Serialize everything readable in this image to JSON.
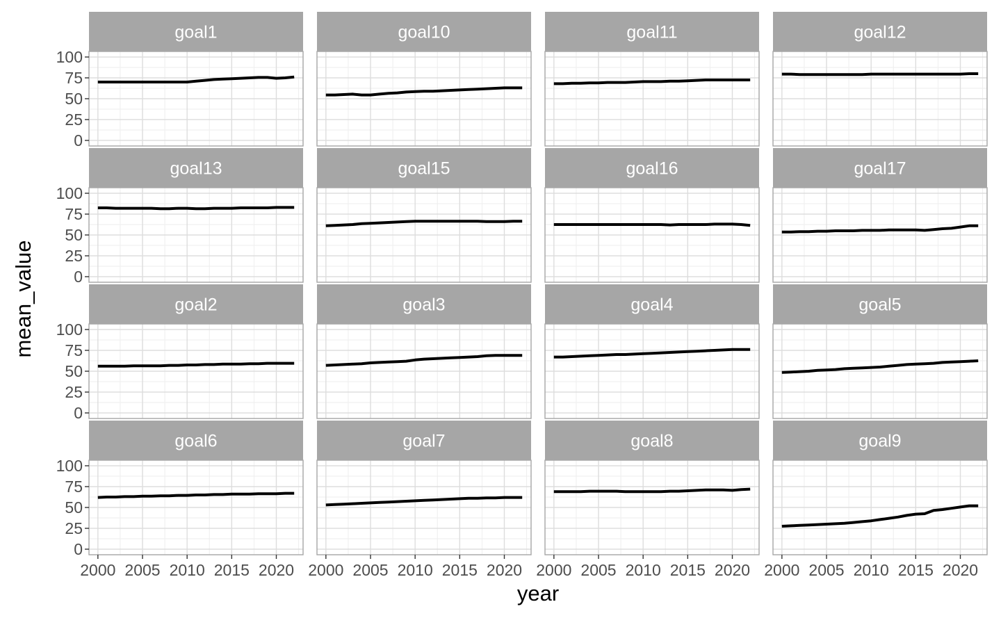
{
  "colors": {
    "strip_background": "#a6a6a6",
    "strip_text": "#ffffff",
    "panel_border": "#a6a6a6",
    "grid_major": "#dddddd",
    "grid_minor": "#eeeeee",
    "line": "#000000",
    "tick_label": "#4d4d4d",
    "axis_title": "#000000"
  },
  "chart_data": {
    "type": "line",
    "layout": "facet_wrap 4x4",
    "xlabel": "year",
    "ylabel": "mean_value",
    "x": [
      2000,
      2001,
      2002,
      2003,
      2004,
      2005,
      2006,
      2007,
      2008,
      2009,
      2010,
      2011,
      2012,
      2013,
      2014,
      2015,
      2016,
      2017,
      2018,
      2019,
      2020,
      2021,
      2022
    ],
    "xlim": [
      1999,
      2023
    ],
    "ylim": [
      0,
      100
    ],
    "x_ticks": [
      2000,
      2005,
      2010,
      2015,
      2020
    ],
    "x_tick_labels": [
      "2000",
      "2005",
      "2010",
      "2015",
      "2020"
    ],
    "y_ticks": [
      0,
      25,
      50,
      75,
      100
    ],
    "y_tick_labels": [
      "0",
      "25",
      "50",
      "75",
      "100"
    ],
    "grid": true,
    "legend": "none",
    "facets": [
      {
        "name": "goal1",
        "values": [
          70,
          70,
          70,
          70,
          70,
          70,
          70,
          70,
          70,
          70,
          70,
          71,
          72,
          73,
          73.5,
          74,
          74.5,
          75,
          75.5,
          75.5,
          74.5,
          75,
          76
        ]
      },
      {
        "name": "goal10",
        "values": [
          54.5,
          54.5,
          55,
          55.5,
          54.5,
          54.5,
          55.5,
          56.5,
          57,
          58,
          58.5,
          59,
          59,
          59.5,
          60,
          60.5,
          61,
          61.5,
          62,
          62.5,
          63,
          63,
          63
        ]
      },
      {
        "name": "goal11",
        "values": [
          68,
          68,
          68.5,
          68.5,
          69,
          69,
          69.5,
          69.5,
          69.5,
          70,
          70.5,
          70.5,
          70.5,
          71,
          71,
          71.5,
          72,
          72.5,
          72.5,
          72.5,
          72.5,
          72.5,
          72.5
        ]
      },
      {
        "name": "goal12",
        "values": [
          79.5,
          79.5,
          79,
          79,
          79,
          79,
          79,
          79,
          79,
          79,
          79.5,
          79.5,
          79.5,
          79.5,
          79.5,
          79.5,
          79.5,
          79.5,
          79.5,
          79.5,
          79.5,
          80,
          80
        ]
      },
      {
        "name": "goal13",
        "values": [
          82.5,
          82.5,
          82,
          82,
          82,
          82,
          82,
          81.5,
          81.5,
          82,
          82,
          81.5,
          81.5,
          82,
          82,
          82,
          82.5,
          82.5,
          82.5,
          82.5,
          83,
          83,
          83
        ]
      },
      {
        "name": "goal15",
        "values": [
          61,
          61.5,
          62,
          62.5,
          63.5,
          64,
          64.5,
          65,
          65.5,
          66,
          66.5,
          66.5,
          66.5,
          66.5,
          66.5,
          66.5,
          66.5,
          66.5,
          66,
          66,
          66,
          66.5,
          66.5
        ]
      },
      {
        "name": "goal16",
        "values": [
          62.5,
          62.5,
          62.5,
          62.5,
          62.5,
          62.5,
          62.5,
          62.5,
          62.5,
          62.5,
          62.5,
          62.5,
          62.5,
          62,
          62.5,
          62.5,
          62.5,
          62.5,
          63,
          63,
          63,
          62.5,
          61.5
        ]
      },
      {
        "name": "goal17",
        "values": [
          53.5,
          53.5,
          54,
          54,
          54.5,
          54.5,
          55,
          55,
          55,
          55.5,
          55.5,
          55.5,
          56,
          56,
          56,
          56,
          55.5,
          56.5,
          57.5,
          58,
          59.5,
          61,
          61
        ]
      },
      {
        "name": "goal2",
        "values": [
          56,
          56,
          56,
          56,
          56.5,
          56.5,
          56.5,
          56.5,
          57,
          57,
          57.5,
          57.5,
          58,
          58,
          58.5,
          58.5,
          58.5,
          59,
          59,
          59.5,
          59.5,
          59.5,
          59.5
        ]
      },
      {
        "name": "goal3",
        "values": [
          57,
          57.5,
          58,
          58.5,
          59,
          60,
          60.5,
          61,
          61.5,
          62,
          63.5,
          64.5,
          65,
          65.5,
          66,
          66.5,
          67,
          67.5,
          68.5,
          69,
          69,
          69,
          69
        ]
      },
      {
        "name": "goal4",
        "values": [
          67,
          67,
          67.5,
          68,
          68.5,
          69,
          69.5,
          70,
          70,
          70.5,
          71,
          71.5,
          72,
          72.5,
          73,
          73.5,
          74,
          74.5,
          75,
          75.5,
          76,
          76,
          76
        ]
      },
      {
        "name": "goal5",
        "values": [
          48.5,
          49,
          49.5,
          50,
          51,
          51.5,
          52,
          53,
          53.5,
          54,
          54.5,
          55,
          56,
          57,
          58,
          58.5,
          59,
          59.5,
          60.5,
          61,
          61.5,
          62,
          62.5
        ]
      },
      {
        "name": "goal6",
        "values": [
          62,
          62.5,
          62.5,
          63,
          63,
          63.5,
          63.5,
          64,
          64,
          64.5,
          64.5,
          65,
          65,
          65.5,
          65.5,
          66,
          66,
          66,
          66.5,
          66.5,
          66.5,
          67,
          67
        ]
      },
      {
        "name": "goal7",
        "values": [
          53,
          53.5,
          54,
          54.5,
          55,
          55.5,
          56,
          56.5,
          57,
          57.5,
          58,
          58.5,
          59,
          59.5,
          60,
          60.5,
          61,
          61,
          61.5,
          61.5,
          62,
          62,
          62
        ]
      },
      {
        "name": "goal8",
        "values": [
          69,
          69,
          69,
          69,
          69.5,
          69.5,
          69.5,
          69.5,
          69,
          69,
          69,
          69,
          69,
          69.5,
          69.5,
          70,
          70.5,
          71,
          71,
          71,
          70.5,
          71.5,
          72
        ]
      },
      {
        "name": "goal9",
        "values": [
          27.5,
          28,
          28.5,
          29,
          29.5,
          30,
          30.5,
          31,
          32,
          33,
          34,
          35.5,
          37,
          38.5,
          40.5,
          42,
          42.5,
          46.5,
          47.5,
          49,
          50.5,
          52,
          52
        ]
      }
    ]
  }
}
